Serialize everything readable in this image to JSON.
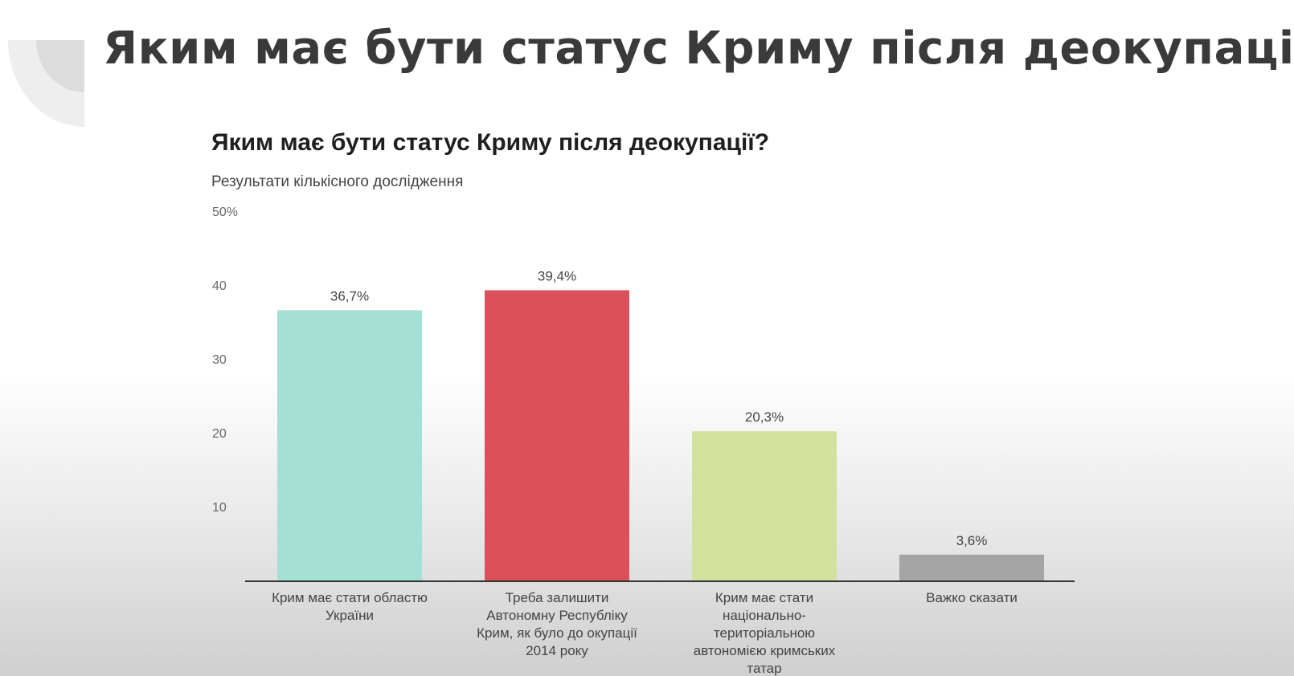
{
  "slide": {
    "title": "Яким має бути статус Криму після деокупації?"
  },
  "chart_data": {
    "type": "bar",
    "title": "Яким має бути статус Криму після деокупації?",
    "subtitle": "Результати кількісного дослідження",
    "categories": [
      [
        "Крим має стати областю",
        "України"
      ],
      [
        "Треба залишити",
        "Автономну Республіку",
        "Крим, як було до окупації",
        "2014 року"
      ],
      [
        "Крим має стати",
        "національно-",
        "територіальною",
        "автономією кримських",
        "татар"
      ],
      [
        "Важко сказати"
      ]
    ],
    "values": [
      36.7,
      39.4,
      20.3,
      3.6
    ],
    "value_labels": [
      "36,7%",
      "39,4%",
      "20,3%",
      "3,6%"
    ],
    "colors": [
      "#a4e0d4",
      "#dc5059",
      "#d3e19e",
      "#a5a5a5"
    ],
    "ylim": [
      0,
      50
    ],
    "yticks": [
      {
        "value": 10,
        "label": "10"
      },
      {
        "value": 20,
        "label": "20"
      },
      {
        "value": 30,
        "label": "30"
      },
      {
        "value": 40,
        "label": "40"
      },
      {
        "value": 50,
        "label": "50%"
      }
    ],
    "grid": false,
    "legend": "none"
  }
}
